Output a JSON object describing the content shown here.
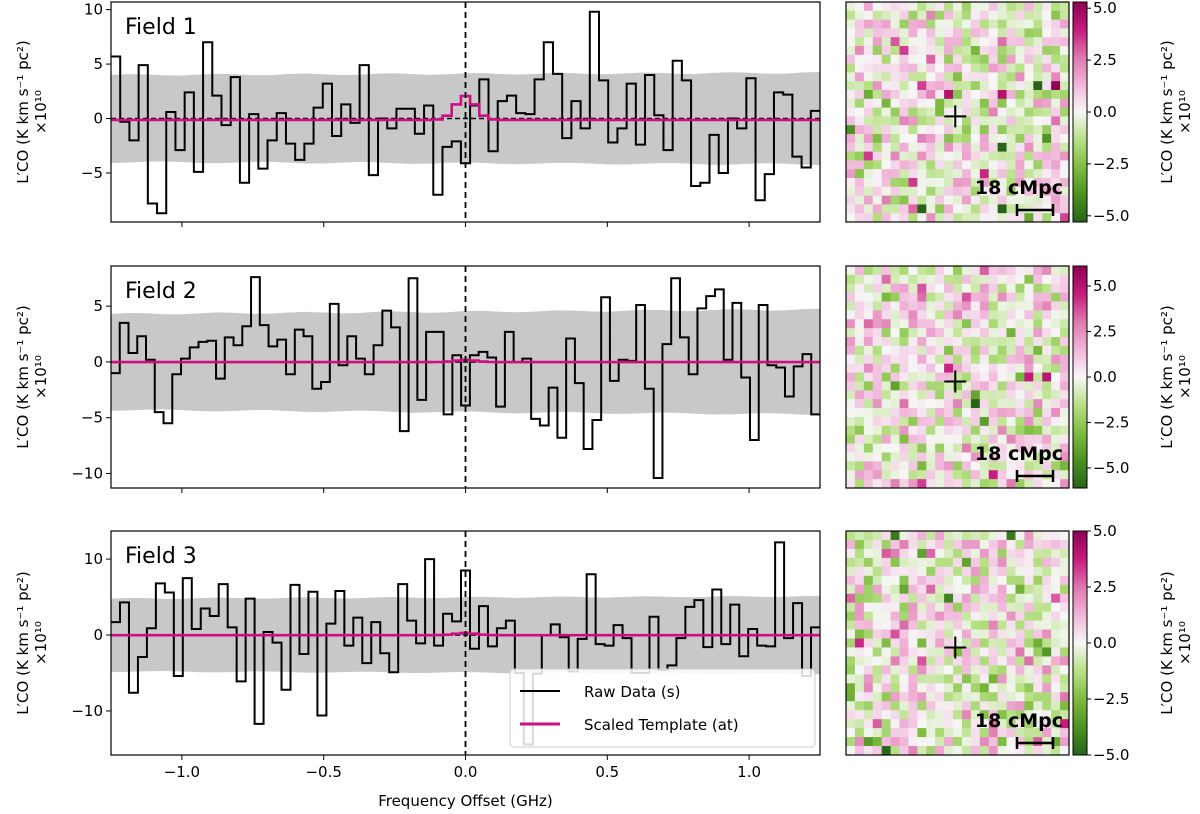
{
  "chart_data": [
    {
      "type": "line",
      "step": true,
      "title": "Field 1",
      "x_range": [
        -1.25,
        1.25
      ],
      "ylim": [
        -9.5,
        10.7
      ],
      "yticks": [
        -5,
        0,
        5,
        10
      ],
      "ytick_labels": [
        "−5",
        "0",
        "5",
        "10"
      ],
      "ylabel": "L′CO (K km s⁻¹ pc²)",
      "ylabel_scale": "×10¹⁰",
      "raw_data": [
        5.7,
        -0.3,
        -2,
        4.9,
        -7.8,
        -8.7,
        0.6,
        -2.9,
        2.4,
        -4.9,
        7.0,
        2.1,
        -0.6,
        3.8,
        -5.9,
        0.4,
        -4.6,
        -2.0,
        0.5,
        -2.3,
        -3.8,
        -2.3,
        1.0,
        3.2,
        -1.6,
        1.3,
        -0.4,
        4.9,
        -5.2,
        0,
        -0.9,
        0.9,
        0.9,
        -1.4,
        1.2,
        -7.0,
        -2.6,
        -2.1,
        -4.1,
        1.2,
        3.6,
        -3.0,
        1.6,
        2.1,
        0.5,
        0.4,
        3.6,
        7.0,
        4.1,
        -1.8,
        1.6,
        -0.9,
        9.8,
        3.5,
        -2.2,
        -0.9,
        3.2,
        -2.4,
        4.0,
        0.3,
        -2.9,
        5.3,
        3.5,
        -6.2,
        -5.9,
        -1.5,
        -5.0,
        0,
        -0.9,
        3.7,
        -7.5,
        -5.1,
        2.4,
        2.2,
        -3.5,
        -4.5,
        0.7
      ],
      "template_peak": 2.2,
      "noise_band": [
        4.0,
        4.2
      ],
      "heatmap": {
        "grid": 25,
        "clim": [
          -5.3,
          5.3
        ],
        "colorbar_ticks": [
          "5.0",
          "2.5",
          "0.0",
          "−2.5",
          "−5.0"
        ],
        "colorbar_values": [
          5,
          2.5,
          0,
          -2.5,
          -5
        ],
        "scale_bar": "18 cMpc",
        "colormap": "PiYG"
      }
    },
    {
      "type": "line",
      "step": true,
      "title": "Field 2",
      "x_range": [
        -1.25,
        1.25
      ],
      "ylim": [
        -11.3,
        8.6
      ],
      "yticks": [
        -10,
        -5,
        0,
        5
      ],
      "ytick_labels": [
        "−10",
        "−5",
        "0",
        "5"
      ],
      "ylabel": "L′CO (K km s⁻¹ pc²)",
      "ylabel_scale": "×10¹⁰",
      "raw_data": [
        -1,
        3.5,
        0.8,
        2.3,
        0.2,
        -4.5,
        -5.5,
        -1.1,
        0.3,
        1.3,
        1.8,
        1.9,
        -1.5,
        2.2,
        1.5,
        3.2,
        7.6,
        3.3,
        1.4,
        2.0,
        -1.1,
        2.9,
        2.3,
        -2.4,
        -1.8,
        5.2,
        -0.3,
        2.3,
        0.3,
        -1.1,
        1.5,
        4.6,
        3.1,
        -6.2,
        7.5,
        -3.4,
        2.7,
        2.7,
        -4.7,
        0.6,
        -3.9,
        0.6,
        0.9,
        0.4,
        -4.0,
        2.7,
        0,
        0.3,
        -5.1,
        -5.7,
        -2.3,
        -6.8,
        2.1,
        -1.9,
        -7.8,
        -5.2,
        5.8,
        -1.7,
        0.2,
        0.1,
        5.1,
        -2.4,
        -10.4,
        1.6,
        7.5,
        2.2,
        -1.1,
        4.8,
        5.9,
        6.5,
        0.2,
        5.3,
        -1.4,
        -7.0,
        5.1,
        -0.3,
        -0.5,
        -3.1,
        -0.4,
        0.7,
        -4.7
      ],
      "template_peak": 0.2,
      "noise_band": [
        4.3,
        4.7
      ],
      "heatmap": {
        "grid": 25,
        "clim": [
          -6.1,
          6.1
        ],
        "colorbar_ticks": [
          "5.0",
          "2.5",
          "0.0",
          "−2.5",
          "−5.0"
        ],
        "colorbar_values": [
          5,
          2.5,
          0,
          -2.5,
          -5
        ],
        "scale_bar": "18 cMpc",
        "colormap": "PiYG"
      }
    },
    {
      "type": "line",
      "step": true,
      "title": "Field 3",
      "x_range": [
        -1.25,
        1.25
      ],
      "ylim": [
        -15.8,
        13.7
      ],
      "yticks": [
        -10,
        0,
        10
      ],
      "ytick_labels": [
        "−10",
        "0",
        "10"
      ],
      "ylabel": "L′CO (K km s⁻¹ pc²)",
      "ylabel_scale": "×10¹⁰",
      "raw_data": [
        1.7,
        4.3,
        -7.6,
        -2.9,
        0.9,
        6.8,
        5.6,
        -5.4,
        7.5,
        0.8,
        3.5,
        2.5,
        6.7,
        1.0,
        -6.1,
        4.8,
        -11.7,
        0.4,
        -1.0,
        -7.2,
        6.6,
        -2.5,
        5.7,
        -10.6,
        1.5,
        5.8,
        -1.4,
        2.3,
        -3.7,
        1.7,
        -2.4,
        -4.9,
        6.7,
        1.9,
        -1.1,
        10.0,
        -1.4,
        2.8,
        1.8,
        8.5,
        -1.8,
        3.8,
        -1.5,
        0.9,
        1.9,
        -5.0,
        -14.4,
        -5.1,
        0,
        1.4,
        -0.3,
        -4.8,
        -0.5,
        8.0,
        -1.2,
        -1.4,
        1.3,
        -0.4,
        -5.0,
        -5.0,
        2.4,
        -4.6,
        -4.0,
        -0.4,
        3.7,
        4.6,
        -1.6,
        6.0,
        -1.2,
        4.0,
        -2.8,
        0.8,
        -1.4,
        -1.5,
        12.2,
        -0.4,
        4.2,
        -5.4,
        1.0
      ],
      "template_peak": 0.3,
      "noise_band": [
        4.8,
        5.1
      ],
      "heatmap": {
        "grid": 25,
        "clim": [
          -5.0,
          5.0
        ],
        "colorbar_ticks": [
          "5.0",
          "2.5",
          "0.0",
          "−2.5",
          "−5.0"
        ],
        "colorbar_values": [
          5,
          2.5,
          0,
          -2.5,
          -5
        ],
        "scale_bar": "18 cMpc",
        "colormap": "PiYG"
      }
    }
  ],
  "xaxis": {
    "label": "Frequency Offset (GHz)",
    "ticks": [
      -1.0,
      -0.5,
      0.0,
      0.5,
      1.0
    ],
    "tick_labels": [
      "−1.0",
      "−0.5",
      "0.0",
      "0.5",
      "1.0"
    ]
  },
  "legend": {
    "raw": "Raw Data (s)",
    "template": "Scaled Template (at)",
    "placement": "lower-right of Field 3"
  },
  "colors": {
    "raw": "#000000",
    "template": "#cc0f80",
    "band": "#c8c8c8"
  }
}
